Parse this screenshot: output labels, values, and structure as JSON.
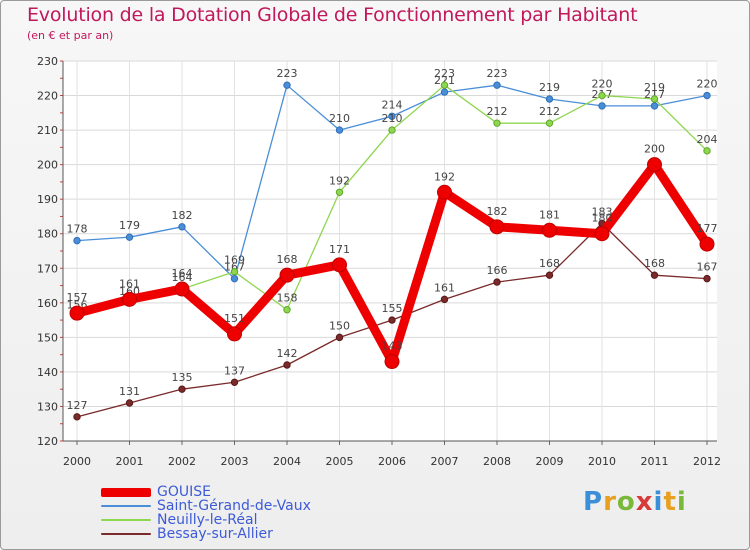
{
  "title": "Evolution de la Dotation Globale de Fonctionnement par Habitant",
  "subtitle": "(en € et par an)",
  "brand": "Proxiti",
  "legend": [
    {
      "name": "GOUISE",
      "color": "#ee0000"
    },
    {
      "name": "Saint-Gérand-de-Vaux",
      "color": "#4a8ed8"
    },
    {
      "name": "Neuilly-le-Réal",
      "color": "#8fd650"
    },
    {
      "name": "Bessay-sur-Allier",
      "color": "#7a2a2a"
    }
  ],
  "chart_data": {
    "type": "line",
    "title": "Evolution de la Dotation Globale de Fonctionnement par Habitant",
    "subtitle": "(en € et par an)",
    "xlabel": "",
    "ylabel": "",
    "grid": true,
    "ylim": [
      120,
      230
    ],
    "yticks": [
      120,
      130,
      140,
      150,
      160,
      170,
      180,
      190,
      200,
      210,
      220,
      230
    ],
    "x": [
      "2000",
      "2001",
      "2002",
      "2003",
      "2004",
      "2005",
      "2006",
      "2007",
      "2008",
      "2009",
      "2010",
      "2011",
      "2012"
    ],
    "series": [
      {
        "name": "Saint-Gérand-de-Vaux",
        "color": "#4a8ed8",
        "values": [
          178,
          179,
          182,
          167,
          223,
          210,
          214,
          221,
          223,
          219,
          217,
          217,
          220
        ]
      },
      {
        "name": "Neuilly-le-Réal",
        "color": "#8fd650",
        "values": [
          156,
          160,
          164,
          169,
          158,
          192,
          210,
          223,
          212,
          212,
          220,
          219,
          204
        ]
      },
      {
        "name": "Bessay-sur-Allier",
        "color": "#7a2a2a",
        "values": [
          127,
          131,
          135,
          137,
          142,
          150,
          155,
          161,
          166,
          168,
          183,
          168,
          167
        ]
      },
      {
        "name": "GOUISE",
        "color": "#ee0000",
        "values": [
          157,
          161,
          164,
          151,
          168,
          171,
          143,
          192,
          182,
          181,
          180,
          200,
          177
        ]
      }
    ]
  }
}
